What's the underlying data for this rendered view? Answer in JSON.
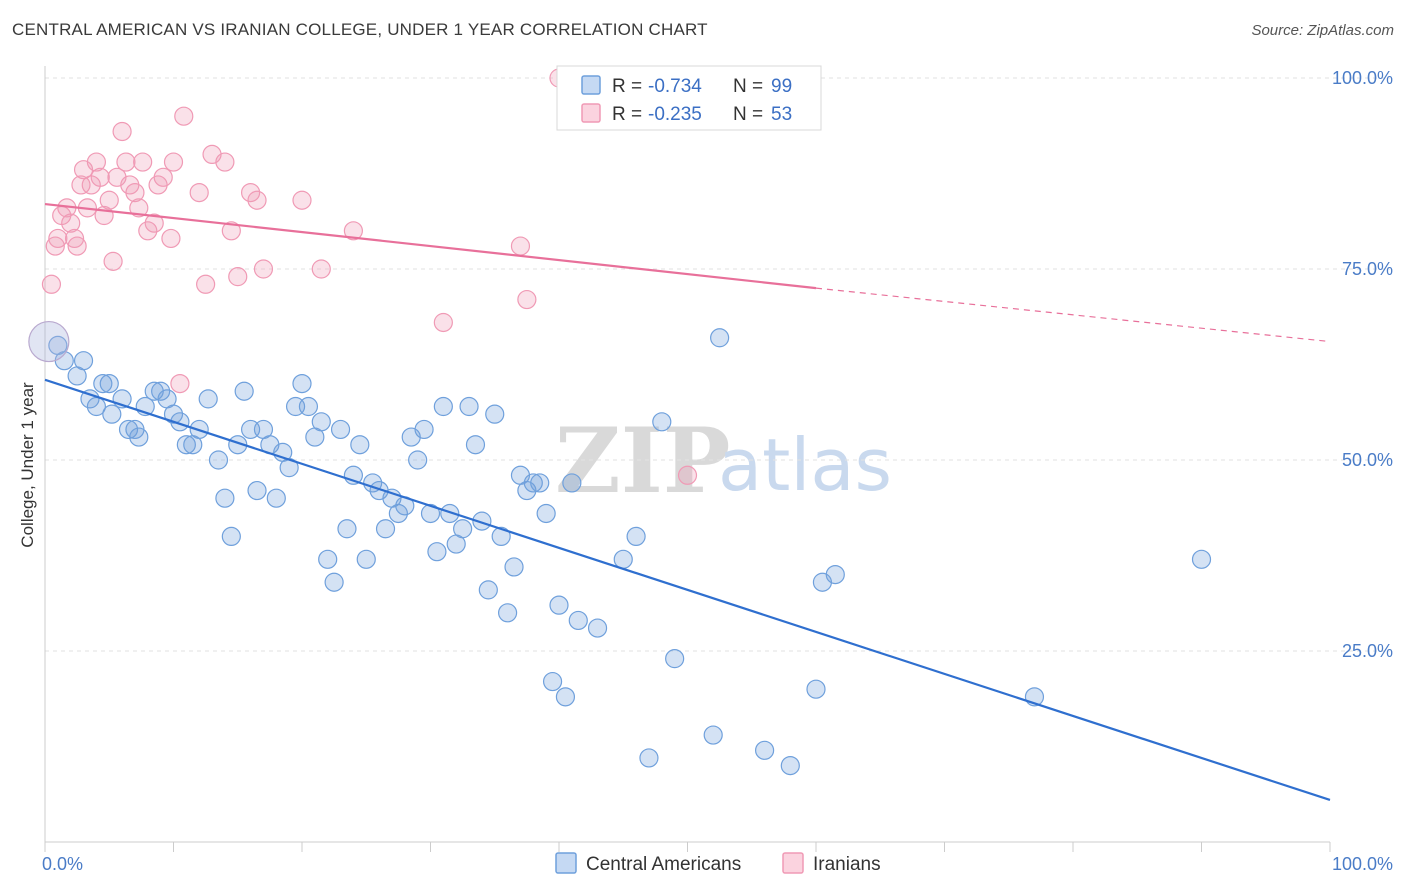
{
  "title": "CENTRAL AMERICAN VS IRANIAN COLLEGE, UNDER 1 YEAR CORRELATION CHART",
  "source": "Source: ZipAtlas.com",
  "watermark": {
    "zip": "ZIP",
    "atlas": "atlas"
  },
  "legend": {
    "r_label": "R =",
    "n_label": "N =",
    "entries": [
      {
        "r": "-0.734",
        "n": "99"
      },
      {
        "r": "-0.235",
        "n": "53"
      }
    ]
  },
  "bottom_legend": [
    "Central Americans",
    "Iranians"
  ],
  "chart_data": {
    "type": "scatter",
    "ylabel": "College, Under 1 year",
    "xlim": [
      0,
      100
    ],
    "ylim": [
      0,
      100
    ],
    "x_tick_labels": [
      "0.0%",
      "100.0%"
    ],
    "y_ticks": [
      25,
      50,
      75,
      100
    ],
    "y_tick_labels": [
      "25.0%",
      "50.0%",
      "75.0%",
      "100.0%"
    ],
    "grid": true,
    "colors": {
      "central": "#6fa0dc",
      "iranian": "#f09ab5",
      "central_line": "#2f6fcf",
      "iranian_line": "#e8709a"
    },
    "series": [
      {
        "name": "Central Americans",
        "trend": {
          "x": [
            0,
            100
          ],
          "y": [
            60.5,
            5.5
          ]
        },
        "points": [
          [
            1,
            65
          ],
          [
            1.5,
            63
          ],
          [
            2.5,
            61
          ],
          [
            3,
            63
          ],
          [
            3.5,
            58
          ],
          [
            4,
            57
          ],
          [
            4.5,
            60
          ],
          [
            5,
            60
          ],
          [
            5.2,
            56
          ],
          [
            6,
            58
          ],
          [
            6.5,
            54
          ],
          [
            7,
            54
          ],
          [
            7.3,
            53
          ],
          [
            7.8,
            57
          ],
          [
            8.5,
            59
          ],
          [
            9,
            59
          ],
          [
            9.5,
            58
          ],
          [
            10,
            56
          ],
          [
            10.5,
            55
          ],
          [
            11,
            52
          ],
          [
            11.5,
            52
          ],
          [
            12,
            54
          ],
          [
            12.7,
            58
          ],
          [
            13.5,
            50
          ],
          [
            14,
            45
          ],
          [
            14.5,
            40
          ],
          [
            15,
            52
          ],
          [
            15.5,
            59
          ],
          [
            16,
            54
          ],
          [
            16.5,
            46
          ],
          [
            17,
            54
          ],
          [
            17.5,
            52
          ],
          [
            18,
            45
          ],
          [
            18.5,
            51
          ],
          [
            19,
            49
          ],
          [
            19.5,
            57
          ],
          [
            20,
            60
          ],
          [
            20.5,
            57
          ],
          [
            21,
            53
          ],
          [
            21.5,
            55
          ],
          [
            22,
            37
          ],
          [
            22.5,
            34
          ],
          [
            23,
            54
          ],
          [
            23.5,
            41
          ],
          [
            24,
            48
          ],
          [
            24.5,
            52
          ],
          [
            25,
            37
          ],
          [
            25.5,
            47
          ],
          [
            26,
            46
          ],
          [
            26.5,
            41
          ],
          [
            27,
            45
          ],
          [
            27.5,
            43
          ],
          [
            28,
            44
          ],
          [
            28.5,
            53
          ],
          [
            29,
            50
          ],
          [
            29.5,
            54
          ],
          [
            30,
            43
          ],
          [
            30.5,
            38
          ],
          [
            31,
            57
          ],
          [
            31.5,
            43
          ],
          [
            32,
            39
          ],
          [
            32.5,
            41
          ],
          [
            33,
            57
          ],
          [
            33.5,
            52
          ],
          [
            34,
            42
          ],
          [
            34.5,
            33
          ],
          [
            35,
            56
          ],
          [
            35.5,
            40
          ],
          [
            36,
            30
          ],
          [
            36.5,
            36
          ],
          [
            37,
            48
          ],
          [
            37.5,
            46
          ],
          [
            38,
            47
          ],
          [
            38.5,
            47
          ],
          [
            39,
            43
          ],
          [
            39.5,
            21
          ],
          [
            40,
            31
          ],
          [
            40.5,
            19
          ],
          [
            41,
            47
          ],
          [
            41.5,
            29
          ],
          [
            43,
            28
          ],
          [
            45,
            37
          ],
          [
            46,
            40
          ],
          [
            47,
            11
          ],
          [
            48,
            55
          ],
          [
            49,
            24
          ],
          [
            52,
            14
          ],
          [
            52.5,
            66
          ],
          [
            56,
            12
          ],
          [
            58,
            10
          ],
          [
            60,
            20
          ],
          [
            60.5,
            34
          ],
          [
            61.5,
            35
          ],
          [
            77,
            19
          ],
          [
            90,
            37
          ]
        ]
      },
      {
        "name": "Iranians",
        "trend": {
          "x": [
            0,
            60,
            100
          ],
          "y": [
            83.5,
            72.5,
            65.5
          ],
          "solid_until": 60
        },
        "points": [
          [
            0.5,
            73
          ],
          [
            0.8,
            78
          ],
          [
            1,
            79
          ],
          [
            1.3,
            82
          ],
          [
            1.7,
            83
          ],
          [
            2,
            81
          ],
          [
            2.3,
            79
          ],
          [
            2.5,
            78
          ],
          [
            2.8,
            86
          ],
          [
            3,
            88
          ],
          [
            3.3,
            83
          ],
          [
            3.6,
            86
          ],
          [
            4,
            89
          ],
          [
            4.3,
            87
          ],
          [
            4.6,
            82
          ],
          [
            5,
            84
          ],
          [
            5.3,
            76
          ],
          [
            5.6,
            87
          ],
          [
            6,
            93
          ],
          [
            6.3,
            89
          ],
          [
            6.6,
            86
          ],
          [
            7,
            85
          ],
          [
            7.3,
            83
          ],
          [
            7.6,
            89
          ],
          [
            8,
            80
          ],
          [
            8.5,
            81
          ],
          [
            8.8,
            86
          ],
          [
            9.2,
            87
          ],
          [
            9.8,
            79
          ],
          [
            10,
            89
          ],
          [
            10.5,
            60
          ],
          [
            10.8,
            95
          ],
          [
            12,
            85
          ],
          [
            12.5,
            73
          ],
          [
            13,
            90
          ],
          [
            14,
            89
          ],
          [
            14.5,
            80
          ],
          [
            15,
            74
          ],
          [
            16,
            85
          ],
          [
            16.5,
            84
          ],
          [
            17,
            75
          ],
          [
            20,
            84
          ],
          [
            21.5,
            75
          ],
          [
            24,
            80
          ],
          [
            31,
            68
          ],
          [
            37,
            78
          ],
          [
            37.5,
            71
          ],
          [
            40,
            100
          ],
          [
            50,
            48
          ]
        ]
      }
    ]
  }
}
